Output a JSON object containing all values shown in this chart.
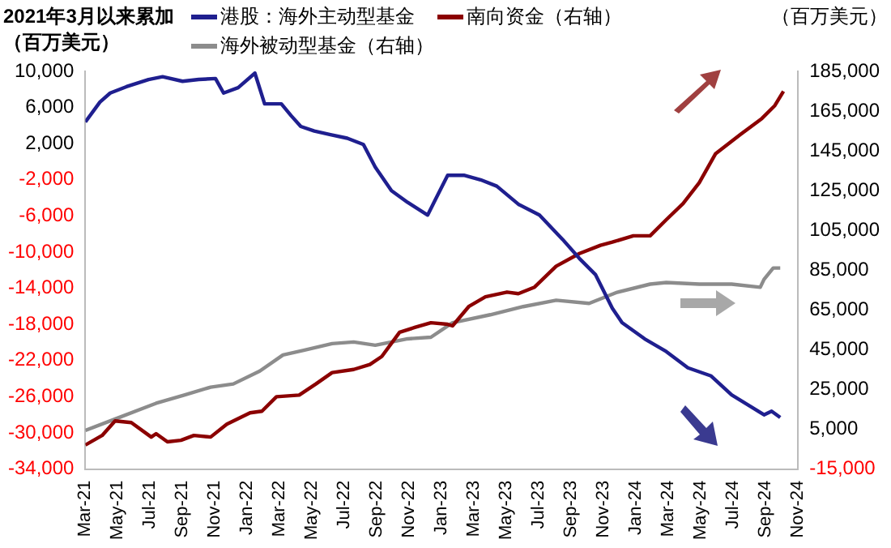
{
  "chart_data": {
    "type": "line",
    "ylabel": "2021年3月以来累加（百万美元）",
    "y2label": "（百万美元）",
    "legend": "top",
    "grid": false,
    "marker": "none",
    "line_style": "solid",
    "xlim": [
      "2021-03",
      "2024-11"
    ],
    "xticks": [
      {
        "value": "2021-03",
        "label": "Mar-21"
      },
      {
        "value": "2021-05",
        "label": "May-21"
      },
      {
        "value": "2021-07",
        "label": "Jul-21"
      },
      {
        "value": "2021-09",
        "label": "Sep-21"
      },
      {
        "value": "2021-11",
        "label": "Nov-21"
      },
      {
        "value": "2022-01",
        "label": "Jan-22"
      },
      {
        "value": "2022-03",
        "label": "Mar-22"
      },
      {
        "value": "2022-05",
        "label": "May-22"
      },
      {
        "value": "2022-07",
        "label": "Jul-22"
      },
      {
        "value": "2022-09",
        "label": "Sep-22"
      },
      {
        "value": "2022-11",
        "label": "Nov-22"
      },
      {
        "value": "2023-01",
        "label": "Jan-23"
      },
      {
        "value": "2023-03",
        "label": "Mar-23"
      },
      {
        "value": "2023-05",
        "label": "May-23"
      },
      {
        "value": "2023-07",
        "label": "Jul-23"
      },
      {
        "value": "2023-09",
        "label": "Sep-23"
      },
      {
        "value": "2023-11",
        "label": "Nov-23"
      },
      {
        "value": "2024-01",
        "label": "Jan-24"
      },
      {
        "value": "2024-03",
        "label": "Mar-24"
      },
      {
        "value": "2024-05",
        "label": "May-24"
      },
      {
        "value": "2024-07",
        "label": "Jul-24"
      },
      {
        "value": "2024-09",
        "label": "Sep-24"
      },
      {
        "value": "2024-11",
        "label": "Nov-24"
      }
    ],
    "ylim": [
      -34000,
      10000
    ],
    "yticks": [
      {
        "value": 10000,
        "label": "10,000"
      },
      {
        "value": 6000,
        "label": "6,000"
      },
      {
        "value": 2000,
        "label": "2,000"
      },
      {
        "value": -2000,
        "label": "-2,000"
      },
      {
        "value": -6000,
        "label": "-6,000"
      },
      {
        "value": -10000,
        "label": "-10,000"
      },
      {
        "value": -14000,
        "label": "-14,000"
      },
      {
        "value": -18000,
        "label": "-18,000"
      },
      {
        "value": -22000,
        "label": "-22,000"
      },
      {
        "value": -26000,
        "label": "-26,000"
      },
      {
        "value": -30000,
        "label": "-30,000"
      },
      {
        "value": -34000,
        "label": "-34,000"
      }
    ],
    "y2lim": [
      -15000,
      185000
    ],
    "y2ticks": [
      {
        "value": 185000,
        "label": "185,000"
      },
      {
        "value": 165000,
        "label": "165,000"
      },
      {
        "value": 145000,
        "label": "145,000"
      },
      {
        "value": 125000,
        "label": "125,000"
      },
      {
        "value": 105000,
        "label": "105,000"
      },
      {
        "value": 85000,
        "label": "85,000"
      },
      {
        "value": 65000,
        "label": "65,000"
      },
      {
        "value": 45000,
        "label": "45,000"
      },
      {
        "value": 25000,
        "label": "25,000"
      },
      {
        "value": 5000,
        "label": "5,000"
      },
      {
        "value": -15000,
        "label": "-15,000"
      }
    ],
    "series": [
      {
        "name": "港股：海外主动型基金",
        "color": "#1f1f8f",
        "x": [
          "2021-03-01",
          "2021-03-28",
          "2021-04-17",
          "2021-05-17",
          "2021-06-28",
          "2021-07-24",
          "2021-09-01",
          "2021-10-01",
          "2021-11-02",
          "2021-11-17",
          "2021-12-14",
          "2022-01-15",
          "2022-02-03",
          "2022-03-04",
          "2022-03-22",
          "2022-04-10",
          "2022-05-05",
          "2022-06-05",
          "2022-07-06",
          "2022-08-06",
          "2022-08-28",
          "2022-09-28",
          "2022-10-28",
          "2022-12-05",
          "2022-12-20",
          "2023-01-12",
          "2023-02-12",
          "2023-03-13",
          "2023-04-13",
          "2023-05-23",
          "2023-07-02",
          "2023-08-15",
          "2023-09-16",
          "2023-10-16",
          "2023-11-17",
          "2023-12-05",
          "2024-01-17",
          "2024-02-27",
          "2024-04-07",
          "2024-05-20",
          "2024-06-28",
          "2024-08-09",
          "2024-08-28",
          "2024-09-12",
          "2024-09-28"
        ],
        "values": [
          4400,
          6600,
          7600,
          8300,
          9100,
          9400,
          8900,
          9100,
          9200,
          7600,
          8200,
          9800,
          6400,
          6400,
          5100,
          3900,
          3400,
          3000,
          2600,
          1900,
          -600,
          -3200,
          -4500,
          -5900,
          -4100,
          -1500,
          -1500,
          -2000,
          -2700,
          -4700,
          -5900,
          -8600,
          -10700,
          -12500,
          -16200,
          -17800,
          -19600,
          -21000,
          -22800,
          -23700,
          -25800,
          -27300,
          -28000,
          -27600,
          -28300
        ]
      },
      {
        "name": "南向资金（右轴）",
        "color": "#8b0000",
        "axis": "y2",
        "x": [
          "2021-03-01",
          "2021-04-02",
          "2021-04-26",
          "2021-05-26",
          "2021-07-03",
          "2021-07-12",
          "2021-08-03",
          "2021-08-28",
          "2021-09-22",
          "2021-10-23",
          "2021-11-23",
          "2022-01-06",
          "2022-01-28",
          "2022-02-25",
          "2022-04-07",
          "2022-05-08",
          "2022-06-08",
          "2022-07-18",
          "2022-08-18",
          "2022-09-10",
          "2022-10-13",
          "2022-11-11",
          "2022-12-11",
          "2023-01-12",
          "2023-01-21",
          "2023-02-21",
          "2023-03-22",
          "2023-05-02",
          "2023-05-23",
          "2023-06-23",
          "2023-08-03",
          "2023-09-16",
          "2023-10-25",
          "2023-11-17",
          "2023-12-26",
          "2024-01-27",
          "2024-02-27",
          "2024-03-28",
          "2024-04-28",
          "2024-05-28",
          "2024-07-14",
          "2024-08-24",
          "2024-09-18",
          "2024-10-04"
        ],
        "values": [
          -2900,
          1900,
          9200,
          8400,
          1100,
          2800,
          -1300,
          -500,
          1900,
          1100,
          7600,
          13300,
          14100,
          21400,
          22200,
          27800,
          33500,
          35100,
          37600,
          41600,
          53800,
          56200,
          58600,
          57800,
          57000,
          66700,
          71600,
          74000,
          73200,
          76500,
          87000,
          93400,
          97500,
          99100,
          102300,
          102300,
          110400,
          118500,
          129000,
          143500,
          153200,
          161300,
          167800,
          175000
        ]
      },
      {
        "name": "海外被动型基金（右轴）",
        "color": "#8c8c8c",
        "axis": "y2",
        "x": [
          "2021-03-01",
          "2021-05-02",
          "2021-07-12",
          "2021-09-04",
          "2021-10-23",
          "2021-12-05",
          "2022-01-24",
          "2022-03-07",
          "2022-04-17",
          "2022-06-08",
          "2022-07-18",
          "2022-08-28",
          "2022-10-28",
          "2022-12-11",
          "2023-01-21",
          "2023-04-01",
          "2023-06-02",
          "2023-08-03",
          "2023-10-04",
          "2023-11-26",
          "2024-01-27",
          "2024-02-27",
          "2024-04-28",
          "2024-06-28",
          "2024-08-21",
          "2024-08-28",
          "2024-09-15",
          "2024-09-28"
        ],
        "values": [
          4400,
          10800,
          18100,
          22200,
          26200,
          27800,
          34300,
          42400,
          44800,
          48100,
          48900,
          47300,
          50500,
          51300,
          58600,
          62600,
          66700,
          69900,
          68300,
          73900,
          78000,
          78800,
          78000,
          78000,
          76400,
          80400,
          86100,
          86100
        ]
      }
    ]
  }
}
